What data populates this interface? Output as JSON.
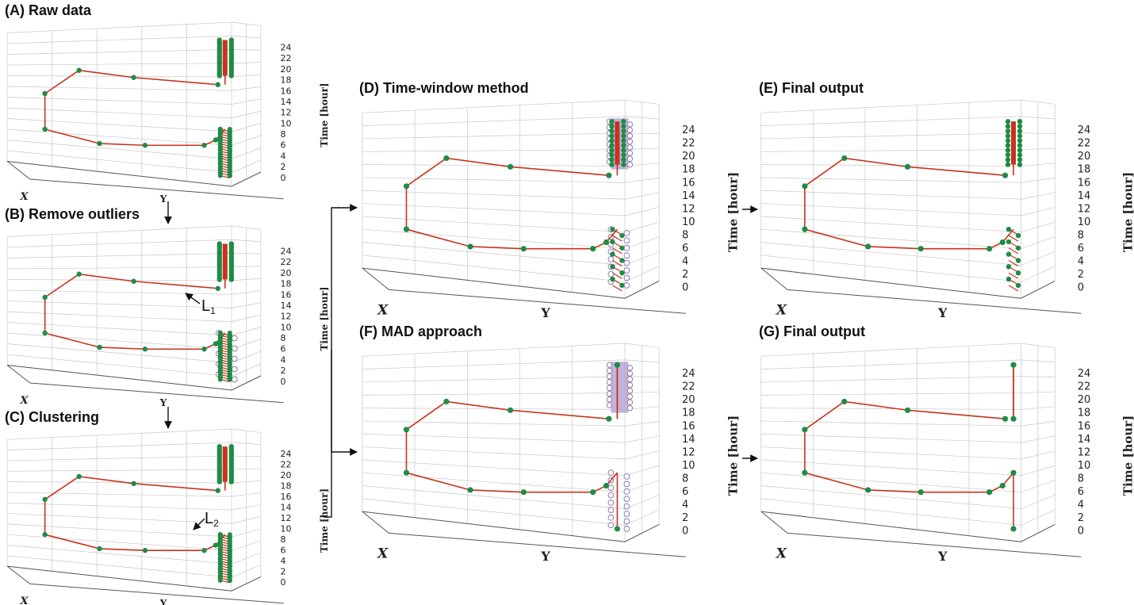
{
  "panels": [
    {
      "id": "A",
      "title": "(A) Raw data",
      "variant": "raw"
    },
    {
      "id": "B",
      "title": "(B) Remove outliers",
      "variant": "removed"
    },
    {
      "id": "C",
      "title": "(C) Clustering",
      "variant": "cluster"
    },
    {
      "id": "D",
      "title": "(D) Time-window method",
      "variant": "timewindow"
    },
    {
      "id": "E",
      "title": "(E) Final output",
      "variant": "final_tw"
    },
    {
      "id": "F",
      "title": "(F) MAD approach",
      "variant": "mad"
    },
    {
      "id": "G",
      "title": "(G) Final output",
      "variant": "final_mad"
    }
  ],
  "axes": {
    "x_label": "X",
    "y_label": "Y",
    "z_label": "Time [hour]",
    "z_ticks": [
      "0",
      "2",
      "4",
      "6",
      "8",
      "10",
      "12",
      "14",
      "16",
      "18",
      "20",
      "22",
      "24"
    ]
  },
  "annotations": {
    "L1": {
      "main": "L",
      "sub": "1"
    },
    "L2": {
      "main": "L",
      "sub": "2"
    }
  },
  "colors": {
    "point": "#1e8c45",
    "path": "#c8321e",
    "removed": "#b9a6d4",
    "removed_stroke": "#8f7ab0",
    "grid": "#c8c8c8",
    "text": "#111111"
  }
}
